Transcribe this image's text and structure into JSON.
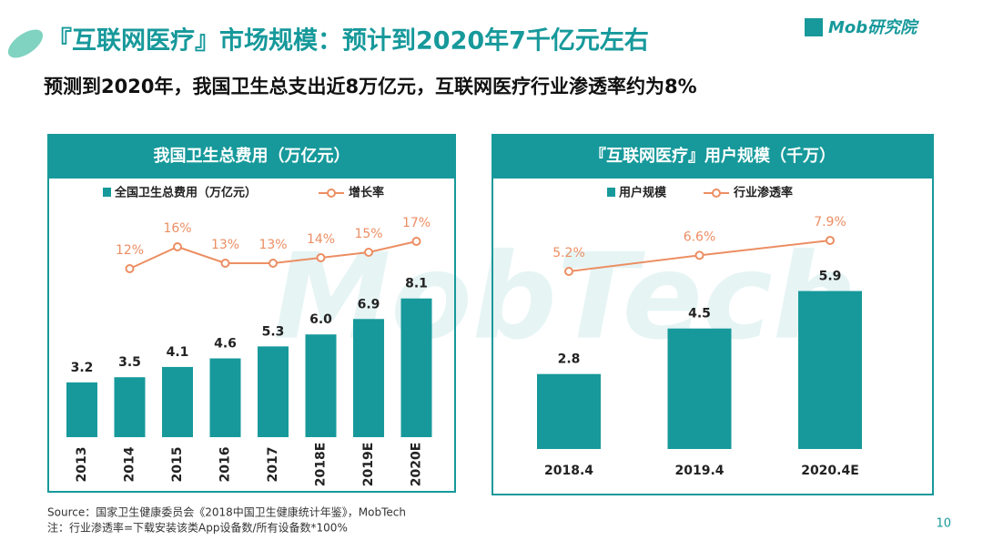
{
  "title": "『互联网医疗』市场规模：预计到2020年7千亿元左右",
  "subtitle": "预测到2020年，我国卫生总支出近8万亿元，互联网医疗行业渗透率约为8%",
  "logo": "Mob研究院",
  "watermark": "MobTech",
  "source": "Source：国家卫生健康委员会《2018中国卫生健康统计年鉴》，MobTech",
  "note": "注：行业渗透率=下载安装该类App设备数/所有设备数*100%",
  "page_number": "10",
  "chart_data": [
    {
      "type": "bar",
      "title": "我国卫生总费用（万亿元）",
      "categories": [
        "2013",
        "2014",
        "2015",
        "2016",
        "2017",
        "2018E",
        "2019E",
        "2020E"
      ],
      "series": [
        {
          "name": "全国卫生总费用（万亿元）",
          "type": "bar",
          "color": "#17999b",
          "values": [
            3.2,
            3.5,
            4.1,
            4.6,
            5.3,
            6.0,
            6.9,
            8.1
          ],
          "value_labels": [
            "3.2",
            "3.5",
            "4.1",
            "4.6",
            "5.3",
            "6.0",
            "6.9",
            "8.1"
          ]
        },
        {
          "name": "增长率",
          "type": "line",
          "color": "#ec8e63",
          "values": [
            null,
            12,
            16,
            13,
            13,
            14,
            15,
            17
          ],
          "value_labels": [
            null,
            "12%",
            "16%",
            "13%",
            "13%",
            "14%",
            "15%",
            "17%"
          ]
        }
      ]
    },
    {
      "type": "bar",
      "title": "『互联网医疗』用户规模（千万）",
      "categories": [
        "2018.4",
        "2019.4",
        "2020.4E"
      ],
      "series": [
        {
          "name": "用户规模",
          "type": "bar",
          "color": "#17999b",
          "values": [
            2.8,
            4.5,
            5.9
          ]
        },
        {
          "name": "行业渗透率",
          "type": "line",
          "color": "#ec8e63",
          "values": [
            5.2,
            6.6,
            7.9
          ],
          "value_labels": [
            "5.2%",
            "6.6%",
            "7.9%"
          ]
        }
      ]
    }
  ]
}
